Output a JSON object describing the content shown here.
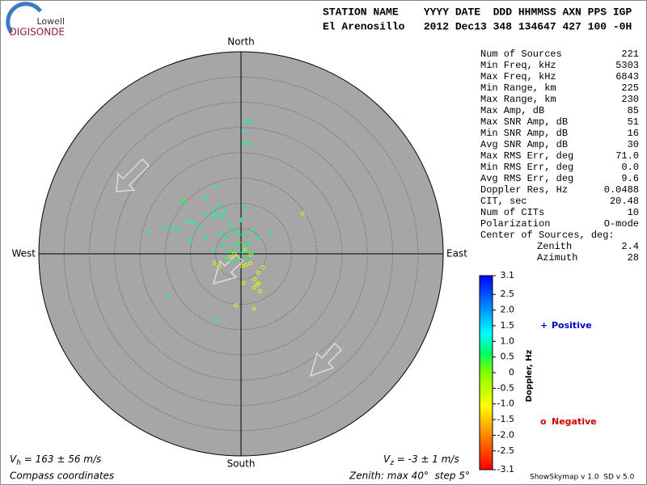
{
  "logo": {
    "line1": "Lowell",
    "line2": "DIGISONDE"
  },
  "header": {
    "line1": "STATION NAME    YYYY DATE  DDD HHMMSS AXN PPS IGP",
    "line2": "El Arenosillo   2012 Dec13 348 134647 427 100 -0H"
  },
  "stats": {
    "rows": [
      [
        "Num of Sources",
        "221"
      ],
      [
        "Min Freq, kHz",
        "5303"
      ],
      [
        "Max Freq, kHz",
        "6843"
      ],
      [
        "Min Range, km",
        "225"
      ],
      [
        "Max Range, km",
        "230"
      ],
      [
        "Max Amp, dB",
        "85"
      ],
      [
        "Max SNR Amp, dB",
        "51"
      ],
      [
        "Min SNR Amp, dB",
        "16"
      ],
      [
        "Avg SNR Amp, dB",
        "30"
      ],
      [
        "Max RMS Err, deg",
        "71.0"
      ],
      [
        "Min RMS Err, deg",
        "0.0"
      ],
      [
        "Avg RMS Err, deg",
        "9.6"
      ],
      [
        "Doppler Res, Hz",
        "0.0488"
      ],
      [
        "CIT, sec",
        "20.48"
      ],
      [
        "Num of CITs",
        "10"
      ],
      [
        "Polarization",
        "O-mode"
      ]
    ],
    "center_title": "Center of Sources, deg:",
    "center_rows": [
      [
        "Zenith",
        "2.4"
      ],
      [
        "Azimuth",
        "28"
      ]
    ]
  },
  "footer": {
    "vh_symbol": "V",
    "vh_sub": "h",
    "vh_text": " = 163 ± 56 m/s",
    "vz_symbol": "V",
    "vz_sub": "z",
    "vz_text": " = -3 ± 1 m/s",
    "coords": "Compass coordinates",
    "zenith": "Zenith: max 40°  step 5°",
    "version": "ShowSkymap v 1.0  SD v 5.0"
  },
  "chart_data": {
    "type": "skymap",
    "directions": {
      "north": "North",
      "south": "South",
      "east": "East",
      "west": "West"
    },
    "rlim": [
      0,
      40
    ],
    "rticks": [
      5,
      10,
      15,
      20,
      25,
      30,
      35,
      40
    ],
    "colorbar": {
      "label": "Doppler, Hz",
      "lim": [
        -3.1,
        3.1
      ],
      "ticks": [
        3.1,
        2.5,
        {
          "value": 2,
          "label": "2.0"
        },
        1.5,
        {
          "value": 1,
          "label": "1.0"
        },
        0.5,
        0,
        -0.5,
        {
          "value": -1,
          "label": "-1.0"
        },
        -1.5,
        {
          "value": -2,
          "label": "-2.0"
        },
        -2.5,
        -3.1
      ]
    },
    "series": [
      {
        "name": "Positive",
        "marker": "+",
        "color": "#0000cc",
        "x": [
          1.0,
          1.8,
          0.5,
          0.6,
          1.4,
          -11.8,
          -11.2,
          -5.0,
          -4.3,
          -5.6,
          -4.5,
          -3.7,
          -3.2,
          -5.3,
          -7.0,
          -10.6,
          -9.6,
          -12.6,
          -13.6,
          -14.9,
          -18.2,
          -8.0,
          -7.0,
          -9.9,
          -4.0,
          -2.1,
          -2.9,
          -1.6,
          -0.8,
          0.3,
          2.1,
          3.4,
          5.9,
          0.8,
          1.4,
          -0.3,
          -1.1,
          -3.5,
          -5.4,
          0.3,
          1.1,
          -1.4,
          2.4,
          -2.6,
          -0.5,
          -1.9,
          -3.2,
          1.1,
          -14.2,
          -4.6,
          0.8,
          0.0,
          -7.0
        ],
        "y": [
          26.1,
          26.1,
          24.2,
          21.8,
          21.8,
          10.4,
          10.1,
          13.3,
          9.6,
          7.4,
          7.7,
          7.4,
          8.3,
          8.3,
          7.7,
          6.4,
          6.1,
          5.0,
          5.0,
          5.1,
          4.3,
          5.3,
          3.2,
          2.7,
          3.8,
          5.9,
          3.5,
          4.6,
          4.2,
          3.8,
          4.5,
          3.2,
          4.0,
          1.4,
          2.2,
          2.2,
          1.8,
          1.8,
          0.6,
          0.3,
          0.5,
          0.6,
          0.2,
          0.5,
          -1.0,
          -1.4,
          -1.0,
          -0.8,
          -8.2,
          -13.1,
          9.1,
          6.7,
          11.2
        ],
        "doppler": [
          0.8,
          0.8,
          1.0,
          0.7,
          0.7,
          0.6,
          0.6,
          1.0,
          0.8,
          1.1,
          0.8,
          0.9,
          1.0,
          0.8,
          0.8,
          1.1,
          1.1,
          0.8,
          1.1,
          1.0,
          0.8,
          0.9,
          0.8,
          0.8,
          0.9,
          0.8,
          0.7,
          0.6,
          0.8,
          0.7,
          0.6,
          0.7,
          0.8,
          0.8,
          0.6,
          0.6,
          0.7,
          0.6,
          0.8,
          0.8,
          0.5,
          0.6,
          0.7,
          0.6,
          0.5,
          0.7,
          0.5,
          0.6,
          0.9,
          1.0,
          0.8,
          0.7,
          1.1
        ]
      },
      {
        "name": "Negative",
        "marker": "o",
        "color": "#cc0000",
        "x": [
          12.2,
          4.3,
          3.4,
          2.7,
          3.5,
          2.6,
          3.2,
          -1.0,
          2.6,
          0.2,
          1.0,
          -1.3,
          -2.1,
          0.8,
          1.9,
          -5.3,
          -4.3,
          1.8,
          3.8,
          0.5
        ],
        "y": [
          8.0,
          -2.7,
          -3.7,
          -5.0,
          -5.8,
          -6.7,
          -6.1,
          -10.2,
          -10.9,
          -2.4,
          -2.2,
          0.0,
          -0.6,
          0.8,
          -0.2,
          -1.8,
          -2.6,
          -1.9,
          -7.4,
          -5.8
        ],
        "doppler": [
          -0.6,
          -0.8,
          -0.9,
          -0.8,
          -0.7,
          -0.9,
          -0.8,
          -0.9,
          -0.8,
          -0.6,
          -0.7,
          -0.5,
          -0.6,
          -0.5,
          -0.7,
          -0.6,
          -0.7,
          -0.8,
          -0.9,
          -0.8
        ]
      }
    ]
  }
}
